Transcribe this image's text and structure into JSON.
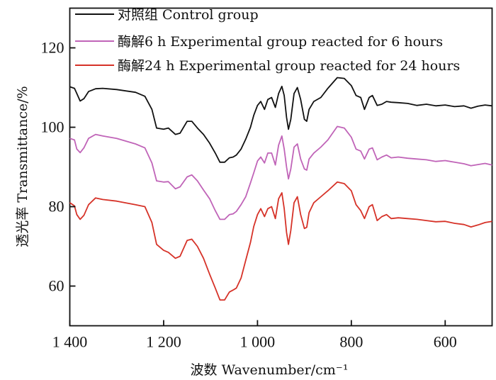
{
  "chart_data": {
    "type": "line",
    "title": "",
    "xlabel": "波数 Wavenumber/cm⁻¹",
    "ylabel": "透光率 Transmittance/%",
    "xlim": [
      1400,
      500
    ],
    "ylim": [
      50,
      130
    ],
    "x_inverted": true,
    "x_ticks": [
      1400,
      1200,
      1000,
      800,
      600
    ],
    "x_tick_labels": [
      "1 400",
      "1 200",
      "1 000",
      "800",
      "600"
    ],
    "y_ticks": [
      60,
      80,
      100,
      120
    ],
    "y_tick_labels": [
      "60",
      "80",
      "100",
      "120"
    ],
    "grid": false,
    "legend_position": "top-left",
    "series": [
      {
        "name": "对照组 Control group",
        "color": "#111111",
        "points": [
          [
            1400,
            110.2
          ],
          [
            1390,
            109.8
          ],
          [
            1385,
            108.5
          ],
          [
            1378,
            106.6
          ],
          [
            1370,
            107.2
          ],
          [
            1360,
            109.0
          ],
          [
            1345,
            109.7
          ],
          [
            1330,
            109.8
          ],
          [
            1300,
            109.5
          ],
          [
            1260,
            108.8
          ],
          [
            1240,
            107.8
          ],
          [
            1225,
            104.5
          ],
          [
            1215,
            99.8
          ],
          [
            1200,
            99.5
          ],
          [
            1190,
            99.8
          ],
          [
            1175,
            98.2
          ],
          [
            1165,
            98.5
          ],
          [
            1150,
            101.5
          ],
          [
            1140,
            101.5
          ],
          [
            1128,
            99.8
          ],
          [
            1115,
            98.2
          ],
          [
            1102,
            96.0
          ],
          [
            1090,
            93.5
          ],
          [
            1080,
            91.2
          ],
          [
            1070,
            91.2
          ],
          [
            1060,
            92.3
          ],
          [
            1052,
            92.5
          ],
          [
            1045,
            93.0
          ],
          [
            1035,
            94.5
          ],
          [
            1025,
            97.0
          ],
          [
            1015,
            100.0
          ],
          [
            1008,
            103.0
          ],
          [
            1000,
            105.5
          ],
          [
            993,
            106.5
          ],
          [
            985,
            104.5
          ],
          [
            978,
            107.0
          ],
          [
            970,
            107.5
          ],
          [
            962,
            105.0
          ],
          [
            955,
            108.5
          ],
          [
            948,
            110.3
          ],
          [
            943,
            108.0
          ],
          [
            938,
            102.5
          ],
          [
            934,
            99.5
          ],
          [
            929,
            102.0
          ],
          [
            922,
            108.5
          ],
          [
            915,
            110.0
          ],
          [
            908,
            107.0
          ],
          [
            900,
            102.0
          ],
          [
            895,
            101.5
          ],
          [
            890,
            104.5
          ],
          [
            880,
            106.5
          ],
          [
            865,
            107.5
          ],
          [
            850,
            109.8
          ],
          [
            830,
            112.5
          ],
          [
            815,
            112.3
          ],
          [
            800,
            110.5
          ],
          [
            790,
            108.0
          ],
          [
            780,
            107.5
          ],
          [
            772,
            104.5
          ],
          [
            762,
            107.5
          ],
          [
            755,
            108.0
          ],
          [
            745,
            105.5
          ],
          [
            735,
            105.8
          ],
          [
            725,
            106.5
          ],
          [
            715,
            106.3
          ],
          [
            700,
            106.2
          ],
          [
            680,
            106.0
          ],
          [
            660,
            105.5
          ],
          [
            640,
            105.8
          ],
          [
            620,
            105.4
          ],
          [
            600,
            105.6
          ],
          [
            580,
            105.2
          ],
          [
            560,
            105.4
          ],
          [
            545,
            104.8
          ],
          [
            530,
            105.3
          ],
          [
            515,
            105.6
          ],
          [
            500,
            105.4
          ]
        ]
      },
      {
        "name": "酶解6 h Experimental group reacted for 6 hours",
        "color": "#c064b8",
        "points": [
          [
            1400,
            97.2
          ],
          [
            1390,
            96.8
          ],
          [
            1385,
            94.5
          ],
          [
            1378,
            93.6
          ],
          [
            1370,
            94.8
          ],
          [
            1360,
            97.2
          ],
          [
            1345,
            98.2
          ],
          [
            1330,
            97.8
          ],
          [
            1300,
            97.2
          ],
          [
            1260,
            95.8
          ],
          [
            1240,
            94.8
          ],
          [
            1225,
            91.0
          ],
          [
            1215,
            86.5
          ],
          [
            1200,
            86.2
          ],
          [
            1190,
            86.3
          ],
          [
            1175,
            84.5
          ],
          [
            1165,
            85.0
          ],
          [
            1150,
            87.5
          ],
          [
            1140,
            88.0
          ],
          [
            1128,
            86.5
          ],
          [
            1115,
            84.2
          ],
          [
            1102,
            82.0
          ],
          [
            1090,
            79.0
          ],
          [
            1080,
            76.8
          ],
          [
            1070,
            76.8
          ],
          [
            1060,
            78.0
          ],
          [
            1052,
            78.2
          ],
          [
            1045,
            78.8
          ],
          [
            1035,
            80.5
          ],
          [
            1025,
            82.5
          ],
          [
            1015,
            86.0
          ],
          [
            1008,
            88.5
          ],
          [
            1000,
            91.5
          ],
          [
            993,
            92.5
          ],
          [
            985,
            91.0
          ],
          [
            978,
            93.5
          ],
          [
            970,
            93.5
          ],
          [
            962,
            90.5
          ],
          [
            955,
            95.5
          ],
          [
            948,
            97.8
          ],
          [
            943,
            94.5
          ],
          [
            938,
            90.0
          ],
          [
            934,
            87.0
          ],
          [
            929,
            89.5
          ],
          [
            922,
            95.0
          ],
          [
            915,
            95.8
          ],
          [
            908,
            92.0
          ],
          [
            900,
            89.5
          ],
          [
            895,
            89.2
          ],
          [
            890,
            92.0
          ],
          [
            880,
            93.5
          ],
          [
            865,
            95.0
          ],
          [
            850,
            96.8
          ],
          [
            830,
            100.2
          ],
          [
            815,
            99.8
          ],
          [
            800,
            97.5
          ],
          [
            790,
            94.5
          ],
          [
            780,
            94.0
          ],
          [
            772,
            92.0
          ],
          [
            762,
            94.5
          ],
          [
            755,
            94.8
          ],
          [
            745,
            91.8
          ],
          [
            735,
            92.5
          ],
          [
            725,
            93.0
          ],
          [
            715,
            92.3
          ],
          [
            700,
            92.5
          ],
          [
            680,
            92.2
          ],
          [
            660,
            92.0
          ],
          [
            640,
            91.8
          ],
          [
            620,
            91.4
          ],
          [
            600,
            91.6
          ],
          [
            580,
            91.2
          ],
          [
            560,
            90.8
          ],
          [
            545,
            90.3
          ],
          [
            530,
            90.6
          ],
          [
            515,
            90.9
          ],
          [
            500,
            90.5
          ]
        ]
      },
      {
        "name": "酶解24 h Experimental group reacted for 24 hours",
        "color": "#d63228",
        "points": [
          [
            1400,
            81.0
          ],
          [
            1390,
            80.2
          ],
          [
            1385,
            78.0
          ],
          [
            1378,
            76.8
          ],
          [
            1370,
            77.8
          ],
          [
            1360,
            80.5
          ],
          [
            1345,
            82.2
          ],
          [
            1330,
            81.8
          ],
          [
            1300,
            81.4
          ],
          [
            1260,
            80.5
          ],
          [
            1240,
            80.0
          ],
          [
            1225,
            76.0
          ],
          [
            1215,
            70.5
          ],
          [
            1200,
            69.0
          ],
          [
            1190,
            68.5
          ],
          [
            1175,
            67.0
          ],
          [
            1165,
            67.5
          ],
          [
            1150,
            71.5
          ],
          [
            1140,
            71.8
          ],
          [
            1128,
            70.0
          ],
          [
            1115,
            67.0
          ],
          [
            1102,
            63.0
          ],
          [
            1090,
            59.5
          ],
          [
            1080,
            56.5
          ],
          [
            1070,
            56.5
          ],
          [
            1060,
            58.5
          ],
          [
            1052,
            59.0
          ],
          [
            1045,
            59.5
          ],
          [
            1035,
            62.0
          ],
          [
            1025,
            66.5
          ],
          [
            1015,
            71.0
          ],
          [
            1008,
            75.0
          ],
          [
            1000,
            78.0
          ],
          [
            993,
            79.5
          ],
          [
            985,
            77.5
          ],
          [
            978,
            79.5
          ],
          [
            970,
            80.0
          ],
          [
            962,
            77.0
          ],
          [
            955,
            82.0
          ],
          [
            948,
            83.5
          ],
          [
            943,
            79.5
          ],
          [
            938,
            73.5
          ],
          [
            934,
            70.5
          ],
          [
            929,
            74.0
          ],
          [
            922,
            81.0
          ],
          [
            915,
            82.5
          ],
          [
            908,
            78.0
          ],
          [
            900,
            74.5
          ],
          [
            895,
            74.8
          ],
          [
            890,
            78.5
          ],
          [
            880,
            81.0
          ],
          [
            865,
            82.5
          ],
          [
            850,
            84.0
          ],
          [
            830,
            86.2
          ],
          [
            815,
            85.8
          ],
          [
            800,
            84.0
          ],
          [
            790,
            80.5
          ],
          [
            780,
            79.0
          ],
          [
            772,
            77.0
          ],
          [
            762,
            80.0
          ],
          [
            755,
            80.5
          ],
          [
            745,
            76.5
          ],
          [
            735,
            77.5
          ],
          [
            725,
            78.0
          ],
          [
            715,
            77.0
          ],
          [
            700,
            77.2
          ],
          [
            680,
            77.0
          ],
          [
            660,
            76.8
          ],
          [
            640,
            76.5
          ],
          [
            620,
            76.2
          ],
          [
            600,
            76.3
          ],
          [
            580,
            75.8
          ],
          [
            560,
            75.5
          ],
          [
            545,
            74.9
          ],
          [
            530,
            75.4
          ],
          [
            515,
            76.0
          ],
          [
            500,
            76.3
          ]
        ]
      }
    ]
  }
}
